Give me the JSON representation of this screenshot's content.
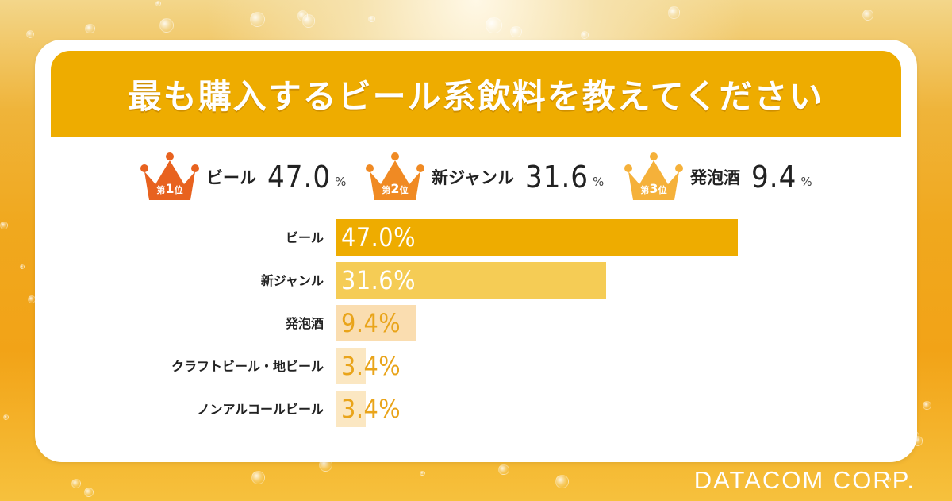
{
  "title": "最も購入するビール系飲料を教えてください",
  "podium": [
    {
      "rank_prefix": "第",
      "rank_num": "1",
      "rank_suffix": "位",
      "name": "ビール",
      "value": "47.0",
      "unit": "%",
      "color": "#e8621f"
    },
    {
      "rank_prefix": "第",
      "rank_num": "2",
      "rank_suffix": "位",
      "name": "新ジャンル",
      "value": "31.6",
      "unit": "%",
      "color": "#f08a23"
    },
    {
      "rank_prefix": "第",
      "rank_num": "3",
      "rank_suffix": "位",
      "name": "発泡酒",
      "value": "9.4",
      "unit": "%",
      "color": "#f5b13a"
    }
  ],
  "chart_data": {
    "type": "bar",
    "orientation": "horizontal",
    "categories": [
      "ビール",
      "新ジャンル",
      "発泡酒",
      "クラフトビール・地ビール",
      "ノンアルコールビール"
    ],
    "values": [
      47.0,
      31.6,
      9.4,
      3.4,
      3.4
    ],
    "value_labels": [
      "47.0%",
      "31.6%",
      "9.4%",
      "3.4%",
      "3.4%"
    ],
    "bar_colors": [
      "#eeac00",
      "#f5cc55",
      "#faddb0",
      "#fbe7c2",
      "#fbe7c2"
    ],
    "xlim": [
      0,
      47
    ],
    "grid": false
  },
  "logo": "DATACOM CORP."
}
